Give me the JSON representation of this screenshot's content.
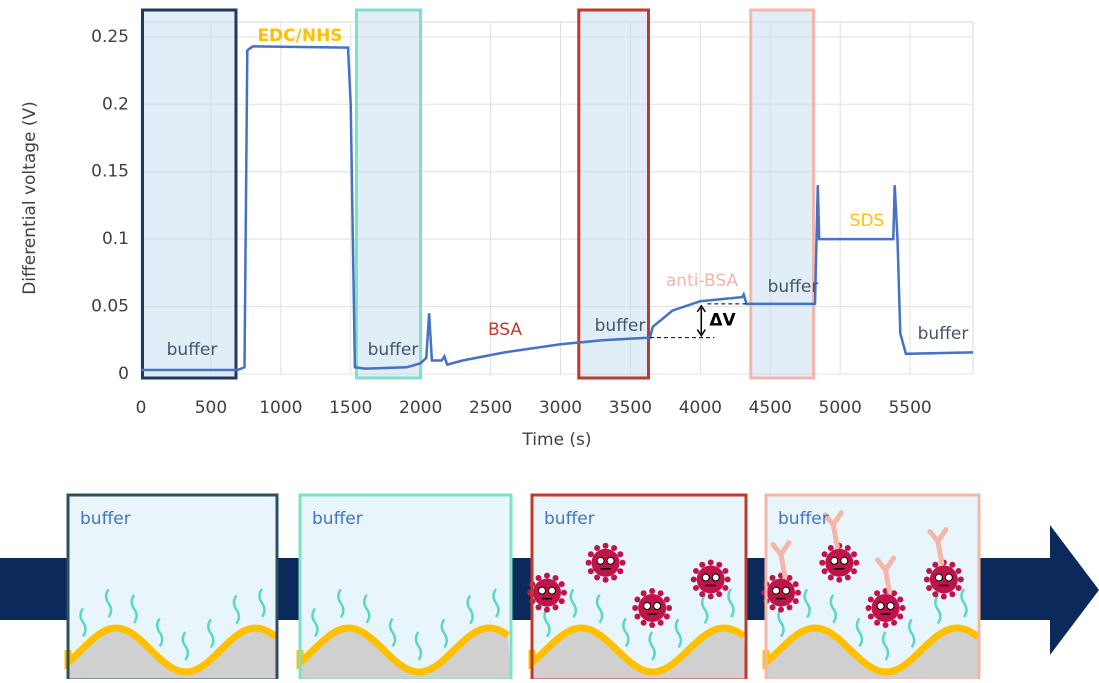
{
  "chart_data": {
    "type": "line",
    "x_label": "Time (s)",
    "y_label": "Differential voltage (V)",
    "color": "#4472c4",
    "grid": true,
    "xlim": [
      0,
      5950
    ],
    "ylim": [
      0,
      0.261
    ],
    "xticks": [
      0,
      500,
      1000,
      1500,
      2000,
      2500,
      3000,
      3500,
      4000,
      4500,
      5000,
      5500
    ],
    "yticks": [
      0,
      0.05,
      0.1,
      0.15,
      0.2,
      0.25
    ],
    "x": [
      0,
      690,
      740,
      760,
      800,
      1480,
      1500,
      1530,
      1600,
      1900,
      2000,
      2040,
      2060,
      2080,
      2150,
      2170,
      2190,
      2300,
      2600,
      3000,
      3300,
      3640,
      3660,
      3800,
      4000,
      4300,
      4310,
      4330,
      4820,
      4840,
      4850,
      5380,
      5390,
      5410,
      5430,
      5470,
      5950
    ],
    "values": [
      0.003,
      0.003,
      0.005,
      0.24,
      0.243,
      0.242,
      0.2,
      0.005,
      0.004,
      0.005,
      0.008,
      0.012,
      0.045,
      0.01,
      0.01,
      0.013,
      0.007,
      0.01,
      0.016,
      0.022,
      0.025,
      0.027,
      0.035,
      0.047,
      0.054,
      0.057,
      0.059,
      0.052,
      0.052,
      0.14,
      0.1,
      0.1,
      0.14,
      0.1,
      0.03,
      0.015,
      0.016
    ],
    "regions": [
      {
        "x0": 0,
        "x1": 690,
        "color": "#203864"
      },
      {
        "x0": 1530,
        "x1": 2010,
        "color": "#7fe0c8"
      },
      {
        "x0": 3120,
        "x1": 3640,
        "color": "#c0392b"
      },
      {
        "x0": 4350,
        "x1": 4820,
        "color": "#f4b6a8"
      }
    ],
    "annotations": [
      {
        "text": "buffer",
        "color": "#44546a"
      },
      {
        "text": "EDC/NHS",
        "color": "#ffc000"
      },
      {
        "text": "buffer",
        "color": "#44546a"
      },
      {
        "text": "BSA",
        "color": "#c0392b"
      },
      {
        "text": "buffer",
        "color": "#44546a"
      },
      {
        "text": "anti-BSA",
        "color": "#f4b6a8"
      },
      {
        "text": "buffer",
        "color": "#44546a"
      },
      {
        "text": "SDS",
        "color": "#ffc000"
      },
      {
        "text": "buffer",
        "color": "#44546a"
      }
    ],
    "delta_v": {
      "label": "ΔV",
      "x": 4050,
      "low": 0.027,
      "high": 0.052
    }
  },
  "diagram": {
    "panels": [
      {
        "label": "buffer",
        "border": "#2f4f5f"
      },
      {
        "label": "buffer",
        "border": "#7fe0c8"
      },
      {
        "label": "buffer",
        "border": "#c0392b"
      },
      {
        "label": "buffer",
        "border": "#f4b6a8"
      }
    ]
  }
}
